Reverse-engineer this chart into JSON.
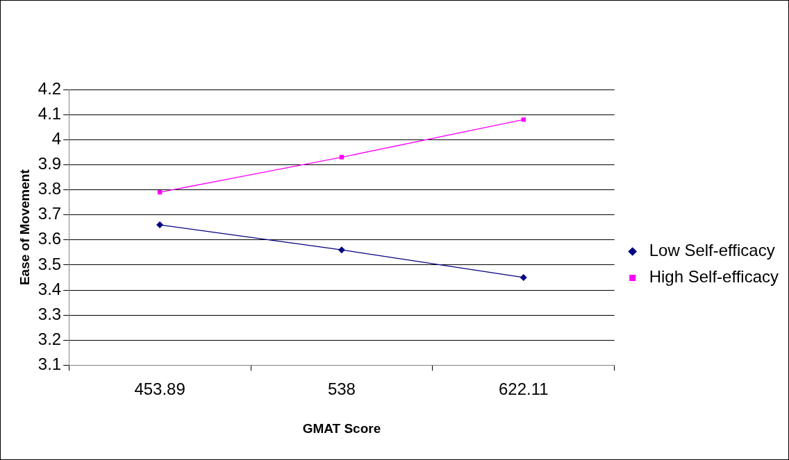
{
  "chart_data": {
    "type": "line",
    "xlabel": "GMAT Score",
    "ylabel": "Ease of Movement",
    "categories": [
      "453.89",
      "538",
      "622.11"
    ],
    "series": [
      {
        "name": "Low Self-efficacy",
        "color": "#000080",
        "marker": "diamond",
        "values": [
          3.66,
          3.56,
          3.45
        ]
      },
      {
        "name": "High Self-efficacy",
        "color": "#ff00ff",
        "marker": "square",
        "values": [
          3.79,
          3.93,
          4.08
        ]
      }
    ],
    "ylim": [
      3.1,
      4.2
    ],
    "yticks": [
      3.1,
      3.2,
      3.3,
      3.4,
      3.5,
      3.6,
      3.7,
      3.8,
      3.9,
      4,
      4.1,
      4.2
    ],
    "grid": "y",
    "legend": "right",
    "line_style": "solid"
  }
}
